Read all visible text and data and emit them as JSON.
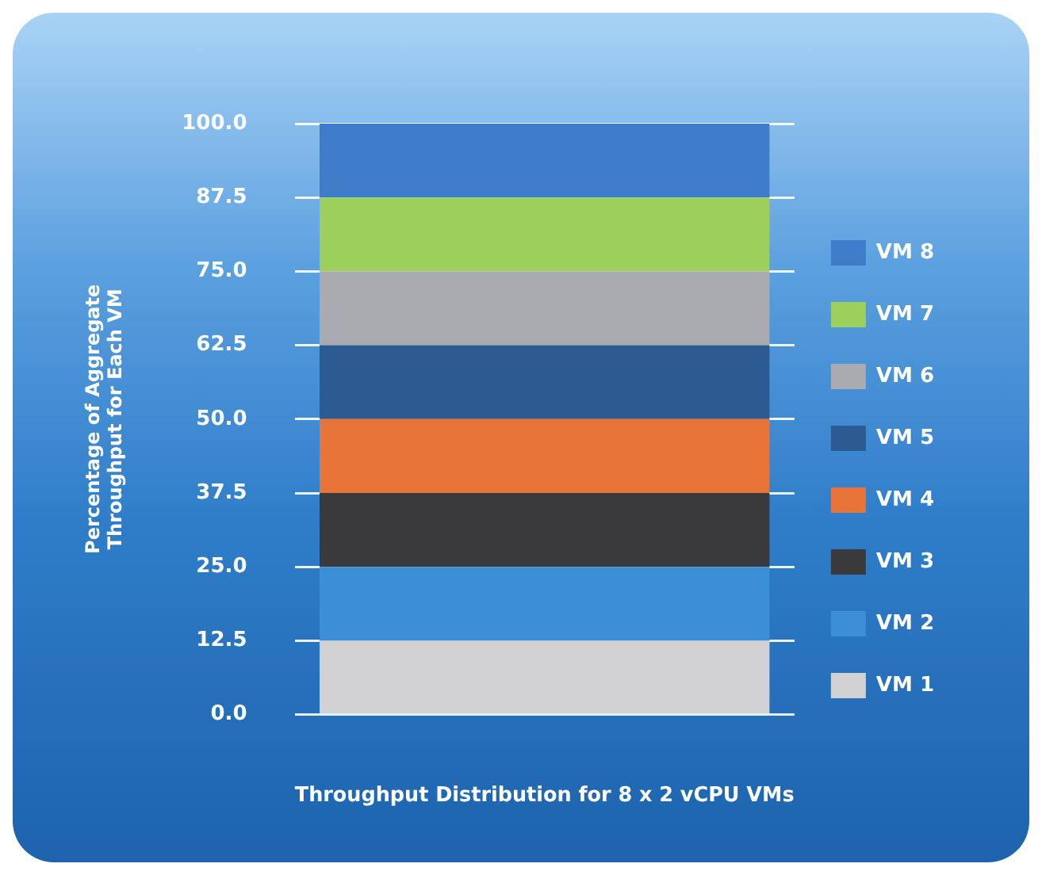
{
  "chart_data": {
    "type": "bar",
    "stacked": true,
    "xlabel": "Throughput Distribution for 8 x 2 vCPU VMs",
    "ylabel": "Percentage of Aggregate Throughput for Each VM",
    "categories": [
      null
    ],
    "series": [
      {
        "name": "VM 1",
        "color": "#d2d2d4",
        "values": [
          12.5
        ]
      },
      {
        "name": "VM 2",
        "color": "#3a8fd6",
        "values": [
          12.5
        ]
      },
      {
        "name": "VM 3",
        "color": "#3a3a3c",
        "values": [
          12.5
        ]
      },
      {
        "name": "VM 4",
        "color": "#e8743a",
        "values": [
          12.5
        ]
      },
      {
        "name": "VM 5",
        "color": "#2c5b92",
        "values": [
          12.5
        ]
      },
      {
        "name": "VM 6",
        "color": "#a9abb0",
        "values": [
          12.5
        ]
      },
      {
        "name": "VM 7",
        "color": "#9ccf5c",
        "values": [
          12.5
        ]
      },
      {
        "name": "VM 8",
        "color": "#3e7cca",
        "values": [
          12.5
        ]
      }
    ],
    "ylim": [
      0,
      100
    ],
    "yticks": [
      {
        "value": 0,
        "label": "0.0"
      },
      12.5,
      {
        "value": 25,
        "label": "25.0"
      },
      37.5,
      {
        "value": 50,
        "label": "50.0"
      },
      62.5,
      {
        "value": 75,
        "label": "75.0"
      },
      87.5,
      {
        "value": 100,
        "label": "100.0"
      }
    ],
    "grid": "y",
    "legend": "right"
  }
}
